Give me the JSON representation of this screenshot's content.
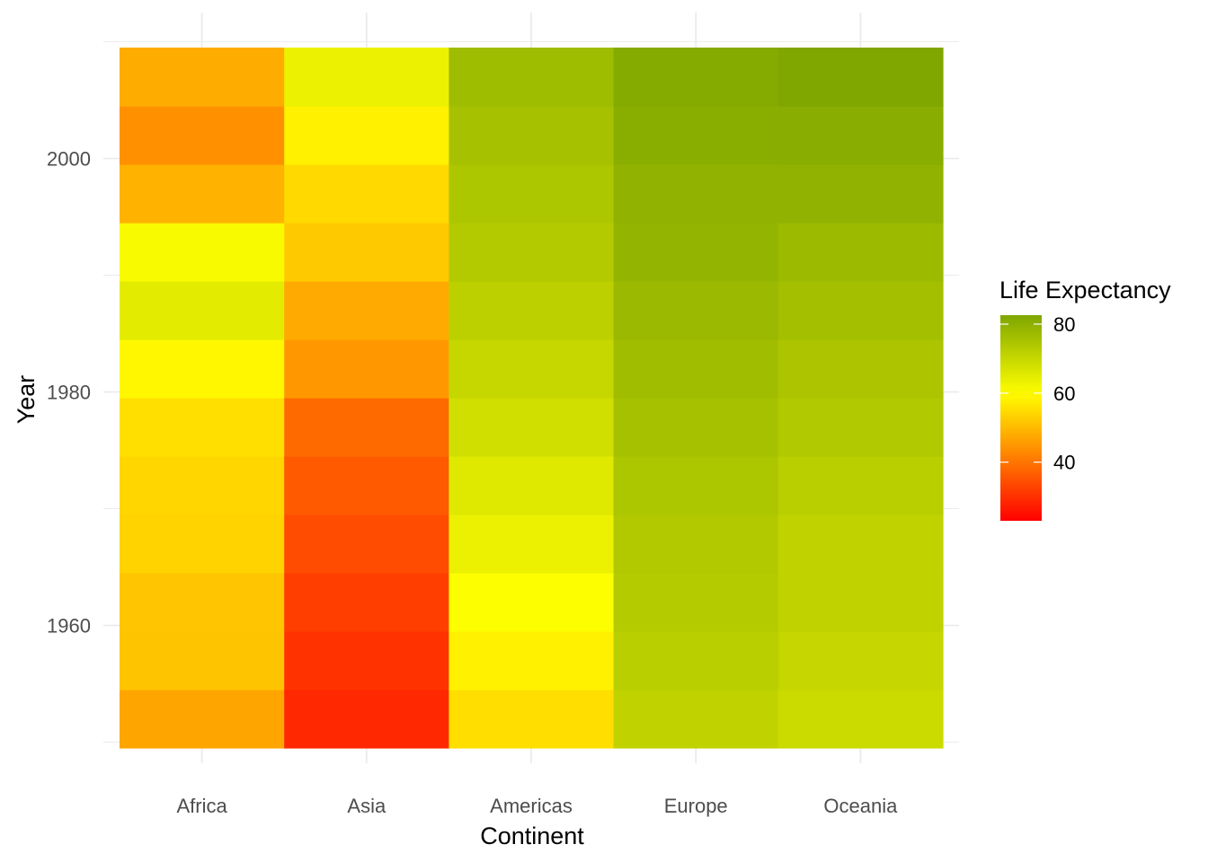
{
  "chart_data": {
    "type": "heatmap",
    "title": "",
    "xlabel": "Continent",
    "ylabel": "Year",
    "x_categories": [
      "Africa",
      "Asia",
      "Americas",
      "Europe",
      "Oceania"
    ],
    "years": [
      1952,
      1957,
      1962,
      1967,
      1972,
      1977,
      1982,
      1987,
      1992,
      1997,
      2002,
      2007
    ],
    "y_ticks": [
      1960,
      1980,
      2000
    ],
    "ylim": [
      1949.5,
      2009.5
    ],
    "series": [
      {
        "name": "Africa",
        "values": [
          47.0,
          51.5,
          51.6,
          53.6,
          54.1,
          55.4,
          58.8,
          65.0,
          61.2,
          48.8,
          44.0,
          47.9
        ]
      },
      {
        "name": "Asia",
        "values": [
          28.8,
          30.3,
          32.0,
          34.0,
          36.1,
          38.4,
          45.1,
          47.7,
          52.2,
          54.5,
          58.0,
          63.6
        ]
      },
      {
        "name": "Americas",
        "values": [
          55.2,
          58.0,
          60.3,
          63.5,
          65.7,
          68.2,
          70.1,
          71.9,
          73.4,
          74.6,
          75.7,
          77.1
        ]
      },
      {
        "name": "Europe",
        "values": [
          71.2,
          72.3,
          73.2,
          73.6,
          74.6,
          75.8,
          76.7,
          77.7,
          79.0,
          79.5,
          80.6,
          81.5
        ]
      },
      {
        "name": "Oceania",
        "values": [
          69.2,
          70.3,
          71.2,
          71.2,
          72.3,
          73.7,
          74.7,
          76.3,
          77.6,
          79.5,
          80.9,
          82.5
        ]
      }
    ],
    "colorbar": {
      "title": "Life Expectancy",
      "min": 23,
      "max": 82.6,
      "ticks": [
        40,
        60,
        80
      ],
      "low_color": "#ff0000",
      "mid_color": "#ffff00",
      "high_color": "#7fa600",
      "mid_value": 60
    },
    "grid": true,
    "legend_position": "right"
  }
}
